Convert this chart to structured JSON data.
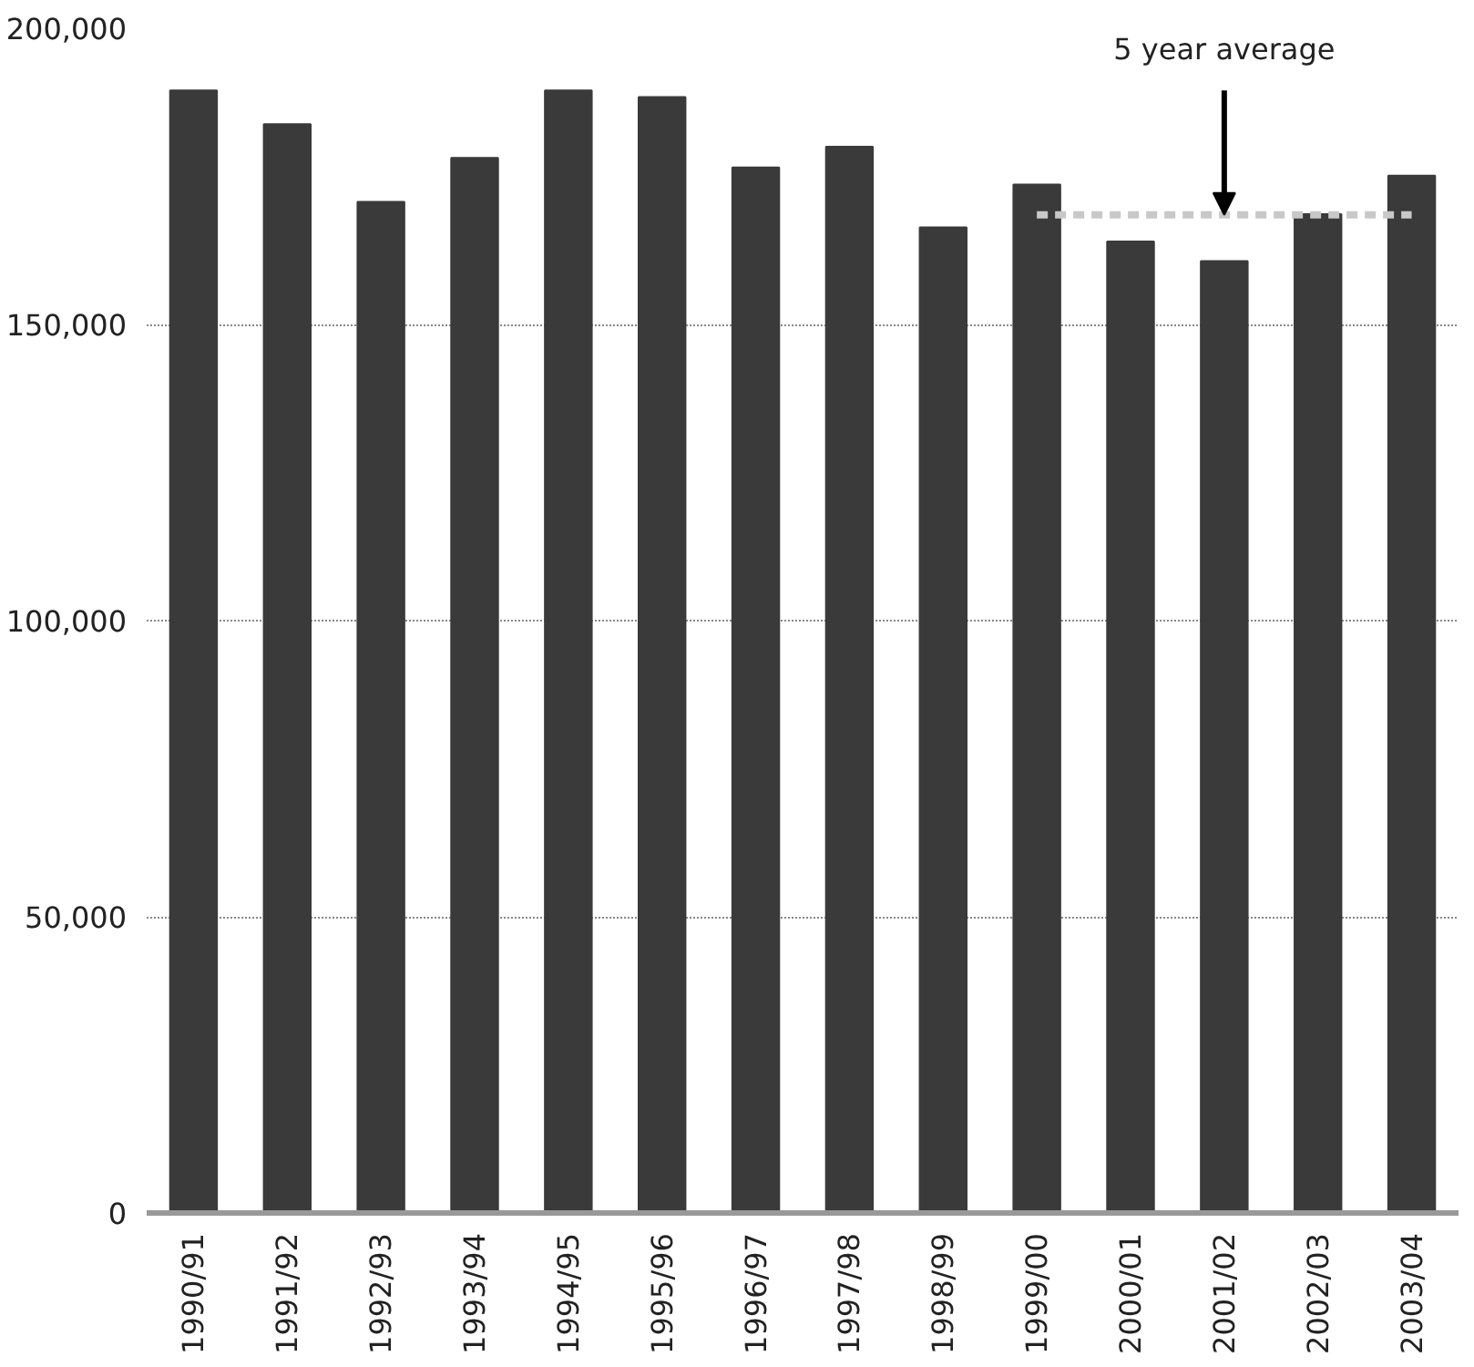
{
  "chart_data": {
    "type": "bar",
    "categories": [
      "1990/91",
      "1991/92",
      "1992/93",
      "1993/94",
      "1994/95",
      "1995/96",
      "1996/97",
      "1997/98",
      "1998/99",
      "1999/00",
      "2000/01",
      "2001/02",
      "2002/03",
      "2003/04"
    ],
    "series": [
      {
        "color": "#3a3a3a",
        "values": [
          189500,
          183800,
          170700,
          178100,
          189500,
          188400,
          176500,
          180000,
          166400,
          173600,
          164000,
          160700,
          168600,
          175100
        ]
      },
      {
        "type": "line",
        "color": "#c8c8c8",
        "line_style": "dashed",
        "values": [
          null,
          null,
          null,
          null,
          null,
          null,
          null,
          null,
          null,
          168500,
          168500,
          168500,
          168500,
          168500
        ]
      }
    ],
    "ylim": [
      0,
      200000
    ],
    "yticks": [
      {
        "value": 0,
        "label": "0"
      },
      {
        "value": 50000,
        "label": "50,000"
      },
      {
        "value": 100000,
        "label": "100,000"
      },
      {
        "value": 150000,
        "label": "150,000"
      },
      {
        "value": 200000,
        "label": "200,000"
      }
    ],
    "grid": "y",
    "annotations": [
      {
        "text": "5 year average",
        "x": "2001/02",
        "y": 168500
      }
    ]
  }
}
